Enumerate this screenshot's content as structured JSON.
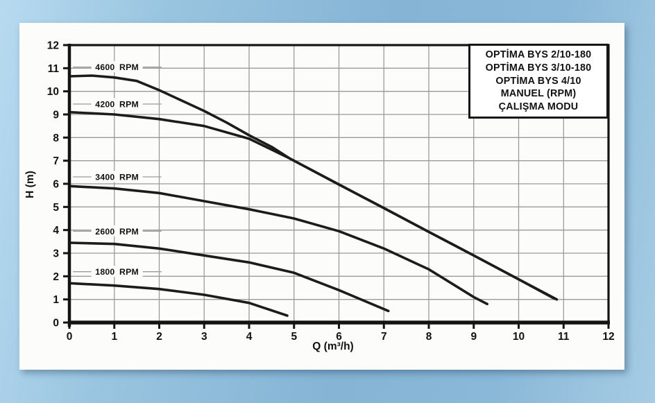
{
  "legend": {
    "lines": [
      "OPTİMA BYS 2/10-180",
      "OPTİMA BYS 3/10-180",
      "OPTİMA BYS 4/10",
      "MANUEL (RPM)",
      "ÇALIŞMA MODU"
    ]
  },
  "colors": {
    "page_blue_light": "#b7daf0",
    "page_blue_dark": "#85b4d5",
    "card_bg": "#fcfcfb",
    "curve": "#1c1c1c",
    "grid": "#9a9a9a",
    "frame": "#141414",
    "text": "#111111"
  },
  "chart_data": {
    "type": "line",
    "title": "",
    "xlabel": "Q (m³/h)",
    "ylabel": "H (m)",
    "xlim": [
      0,
      12
    ],
    "ylim": [
      0,
      12
    ],
    "grid": true,
    "legend_position": "top-right",
    "x_ticks": [
      0,
      1,
      2,
      3,
      4,
      5,
      6,
      7,
      8,
      9,
      10,
      11,
      12
    ],
    "y_ticks": [
      0,
      1,
      2,
      3,
      4,
      5,
      6,
      7,
      8,
      9,
      10,
      11,
      12
    ],
    "series": [
      {
        "name": "4600 RPM",
        "label_q": 1.06,
        "label_h": 11.05,
        "points": [
          [
            0,
            10.65
          ],
          [
            0.5,
            10.68
          ],
          [
            1,
            10.6
          ],
          [
            1.5,
            10.45
          ],
          [
            2,
            10.05
          ],
          [
            2.5,
            9.6
          ],
          [
            3,
            9.15
          ],
          [
            3.5,
            8.65
          ],
          [
            4,
            8.1
          ],
          [
            4.5,
            7.6
          ],
          [
            4.9,
            7.1
          ],
          [
            6,
            5.97
          ],
          [
            7,
            4.95
          ],
          [
            8,
            3.92
          ],
          [
            9,
            2.9
          ],
          [
            10,
            1.87
          ],
          [
            10.85,
            1.0
          ]
        ]
      },
      {
        "name": "4200 RPM",
        "label_q": 1.06,
        "label_h": 9.45,
        "points": [
          [
            0,
            9.1
          ],
          [
            1,
            9.0
          ],
          [
            2,
            8.8
          ],
          [
            3,
            8.5
          ],
          [
            4,
            7.95
          ],
          [
            4.9,
            7.1
          ],
          [
            6,
            5.97
          ],
          [
            7,
            4.95
          ],
          [
            8,
            3.92
          ],
          [
            9,
            2.9
          ],
          [
            10,
            1.87
          ],
          [
            10.8,
            1.03
          ]
        ]
      },
      {
        "name": "3400 RPM",
        "label_q": 1.06,
        "label_h": 6.3,
        "points": [
          [
            0,
            5.9
          ],
          [
            1,
            5.8
          ],
          [
            2,
            5.6
          ],
          [
            3,
            5.25
          ],
          [
            4,
            4.9
          ],
          [
            5,
            4.5
          ],
          [
            6,
            3.95
          ],
          [
            7,
            3.2
          ],
          [
            8,
            2.3
          ],
          [
            9,
            1.1
          ],
          [
            9.3,
            0.8
          ]
        ]
      },
      {
        "name": "2600 RPM",
        "label_q": 1.06,
        "label_h": 3.95,
        "points": [
          [
            0,
            3.45
          ],
          [
            1,
            3.4
          ],
          [
            2,
            3.2
          ],
          [
            3,
            2.9
          ],
          [
            4,
            2.6
          ],
          [
            5,
            2.15
          ],
          [
            6,
            1.4
          ],
          [
            7.1,
            0.5
          ]
        ]
      },
      {
        "name": "1800 RPM",
        "label_q": 1.06,
        "label_h": 2.2,
        "points": [
          [
            0,
            1.7
          ],
          [
            1,
            1.6
          ],
          [
            2,
            1.45
          ],
          [
            3,
            1.2
          ],
          [
            4,
            0.85
          ],
          [
            4.85,
            0.3
          ]
        ]
      }
    ]
  }
}
